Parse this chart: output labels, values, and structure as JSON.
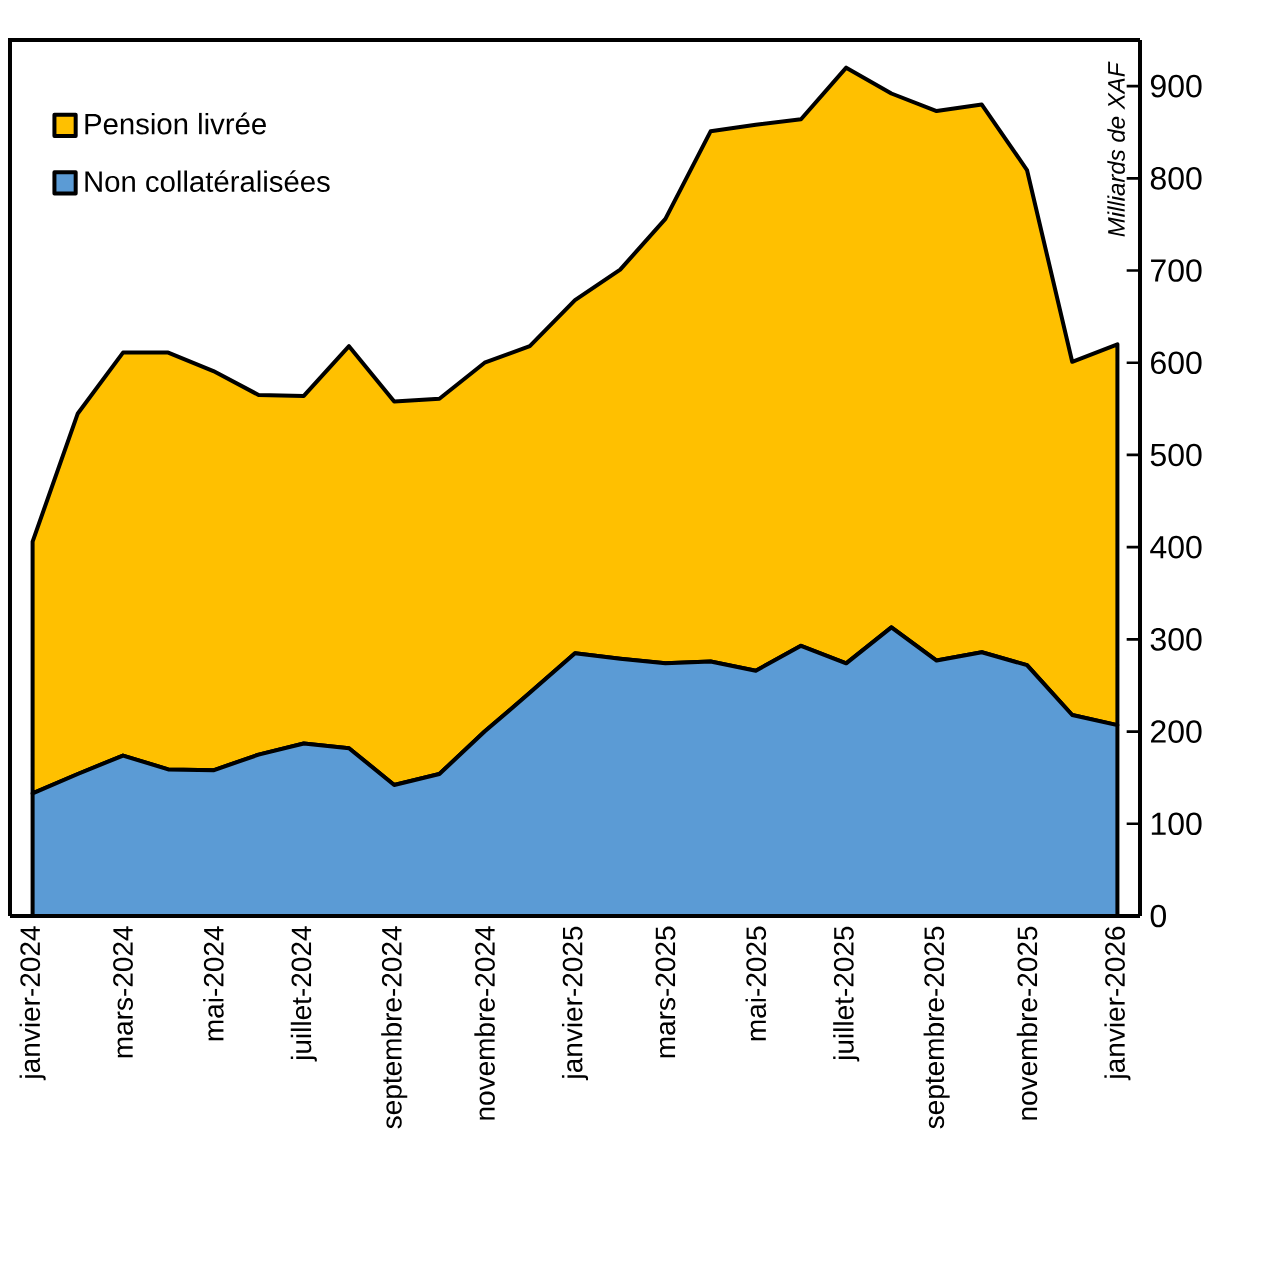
{
  "chart_data": {
    "type": "area",
    "stacked": true,
    "ylabel": "Milliards de XAF",
    "categories": [
      "janvier-2024",
      null,
      "mars-2024",
      null,
      "mai-2024",
      null,
      "juillet-2024",
      null,
      "septembre-2024",
      null,
      "novembre-2024",
      null,
      "janvier-2025",
      null,
      "mars-2025",
      null,
      "mai-2025",
      null,
      "juillet-2025",
      null,
      "septembre-2025",
      null,
      "novembre-2025",
      null,
      "janvier-2026"
    ],
    "series": [
      {
        "name": "Non collatéralisées",
        "color": "#5b9bd5",
        "values": [
          133,
          154,
          174,
          159,
          158,
          175,
          187,
          182,
          142,
          154,
          200,
          242,
          285,
          279,
          274,
          276,
          266,
          293,
          274,
          313,
          277,
          286,
          272,
          218,
          207
        ]
      },
      {
        "name": "Pension livrée",
        "color": "#ffc000",
        "values": [
          273,
          391,
          437,
          452,
          433,
          390,
          377,
          436,
          416,
          407,
          400,
          376,
          383,
          422,
          482,
          575,
          592,
          571,
          646,
          579,
          596,
          594,
          537,
          383,
          413
        ]
      }
    ],
    "ylim": [
      0,
      950
    ],
    "yticks": [
      0,
      100,
      200,
      300,
      400,
      500,
      600,
      700,
      800,
      900
    ],
    "legend": "top left"
  }
}
